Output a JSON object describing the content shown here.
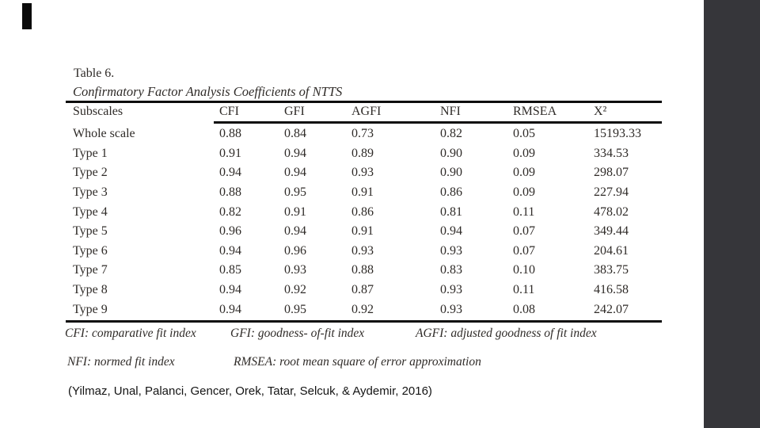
{
  "table": {
    "label": "Table 6.",
    "caption": "Confirmatory Factor Analysis Coefficients of NTTS",
    "columns": [
      "Subscales",
      "CFI",
      "GFI",
      "AGFI",
      "NFI",
      "RMSEA",
      "X²"
    ],
    "rows": [
      {
        "subscale": "Whole scale",
        "values": [
          "0.88",
          "0.84",
          "0.73",
          "0.82",
          "0.05",
          "15193.33"
        ]
      },
      {
        "subscale": "Type 1",
        "values": [
          "0.91",
          "0.94",
          "0.89",
          "0.90",
          "0.09",
          "334.53"
        ]
      },
      {
        "subscale": "Type 2",
        "values": [
          "0.94",
          "0.94",
          "0.93",
          "0.90",
          "0.09",
          "298.07"
        ]
      },
      {
        "subscale": "Type 3",
        "values": [
          "0.88",
          "0.95",
          "0.91",
          "0.86",
          "0.09",
          "227.94"
        ]
      },
      {
        "subscale": "Type 4",
        "values": [
          "0.82",
          "0.91",
          "0.86",
          "0.81",
          "0.11",
          "478.02"
        ]
      },
      {
        "subscale": "Type 5",
        "values": [
          "0.96",
          "0.94",
          "0.91",
          "0.94",
          "0.07",
          "349.44"
        ]
      },
      {
        "subscale": "Type 6",
        "values": [
          "0.94",
          "0.96",
          "0.93",
          "0.93",
          "0.07",
          "204.61"
        ]
      },
      {
        "subscale": "Type 7",
        "values": [
          "0.85",
          "0.93",
          "0.88",
          "0.83",
          "0.10",
          "383.75"
        ]
      },
      {
        "subscale": "Type 8",
        "values": [
          "0.94",
          "0.92",
          "0.87",
          "0.93",
          "0.11",
          "416.58"
        ]
      },
      {
        "subscale": "Type 9",
        "values": [
          "0.94",
          "0.95",
          "0.92",
          "0.93",
          "0.08",
          "242.07"
        ]
      }
    ],
    "footnotes": {
      "line1": [
        "CFI: comparative fit index",
        "GFI: goodness- of-fit index",
        "AGFI: adjusted goodness of fit index"
      ],
      "line2": [
        "NFI: normed fit index",
        "RMSEA: root mean square of error approximation"
      ]
    }
  },
  "citation": "(Yilmaz, Unal, Palanci, Gencer, Orek, Tatar, Selcuk, & Aydemir, 2016)",
  "colors": {
    "sidebar": "#36363a",
    "text": "#2f2b28",
    "rule": "#0d0d0d",
    "background": "#ffffff"
  }
}
